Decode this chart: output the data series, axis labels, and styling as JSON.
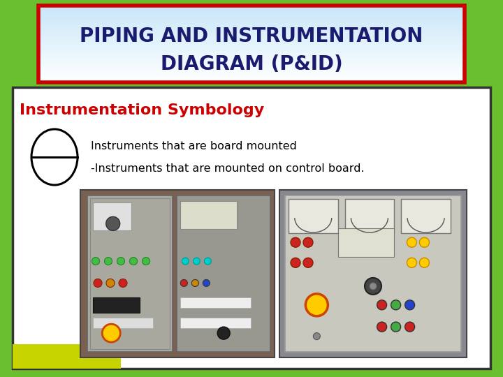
{
  "title_line1": "PIPING AND INSTRUMENTATION",
  "title_line2": "DIAGRAM (P&ID)",
  "section_title": "Instrumentation Symbology",
  "text1": "Instruments that are board mounted",
  "text2": "-Instruments that are mounted on control board.",
  "bg_outer": "#6abf2e",
  "bg_inner": "#ffffff",
  "title_border_color": "#cc0000",
  "title_font_color": "#1a1a6e",
  "section_title_color": "#cc0000",
  "text_color": "#000000",
  "inner_border_color": "#333333",
  "bottom_bar_color": "#c8d400"
}
